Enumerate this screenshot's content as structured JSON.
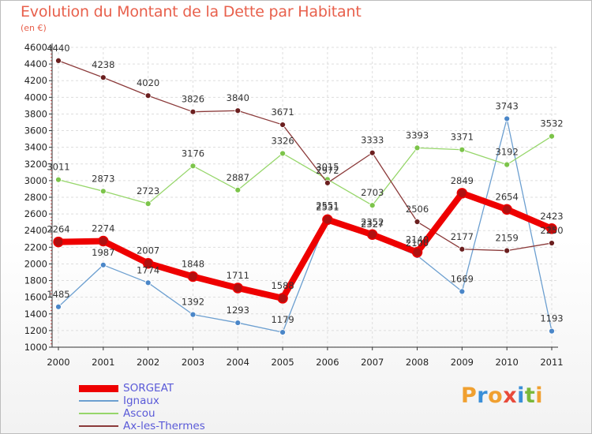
{
  "title": "Evolution du Montant de la Dette par Habitant",
  "unit": "(en €)",
  "logo": {
    "letters": [
      "P",
      "r",
      "o",
      "x",
      "i",
      "t",
      "i"
    ],
    "colors": [
      "#f0a030",
      "#3a8fd8",
      "#f0a030",
      "#e84a3a",
      "#3a8fd8",
      "#7ab83a",
      "#f0a030"
    ]
  },
  "chart_data": {
    "type": "line",
    "title": "Evolution du Montant de la Dette par Habitant",
    "ylabel": "(en €)",
    "xlabel": "",
    "x": [
      "2000",
      "2001",
      "2002",
      "2003",
      "2004",
      "2005",
      "2006",
      "2007",
      "2008",
      "2009",
      "2010",
      "2011"
    ],
    "ylim": [
      1000,
      4600
    ],
    "yticks": [
      1000,
      1200,
      1400,
      1600,
      1800,
      2000,
      2200,
      2400,
      2600,
      2800,
      3000,
      3200,
      3400,
      3600,
      3800,
      4000,
      4200,
      4400,
      4600
    ],
    "grid": true,
    "legend_position": "bottom-left",
    "series": [
      {
        "name": "SORGEAT",
        "color": "#ee0000",
        "width": 8,
        "marker": "#b01010",
        "values": [
          2264,
          2274,
          2007,
          1848,
          1711,
          1588,
          2531,
          2352,
          2140,
          2849,
          2654,
          2423
        ]
      },
      {
        "name": "Ignaux",
        "color": "#6c9fd0",
        "width": 1.3,
        "marker": "#4a86c8",
        "values": [
          1485,
          1987,
          1774,
          1392,
          1293,
          1179,
          2551,
          2327,
          2100,
          1669,
          3743,
          1193
        ]
      },
      {
        "name": "Ascou",
        "color": "#96d66a",
        "width": 1.3,
        "marker": "#7cc44a",
        "values": [
          3011,
          2873,
          2723,
          3176,
          2887,
          3326,
          3015,
          2703,
          3393,
          3371,
          3192,
          3532
        ]
      },
      {
        "name": "Ax-les-Thermes",
        "color": "#8b3a3a",
        "width": 1.3,
        "marker": "#6b1f1f",
        "values": [
          4440,
          4238,
          4020,
          3826,
          3840,
          3671,
          2972,
          3333,
          2506,
          2177,
          2159,
          2250
        ]
      }
    ]
  }
}
